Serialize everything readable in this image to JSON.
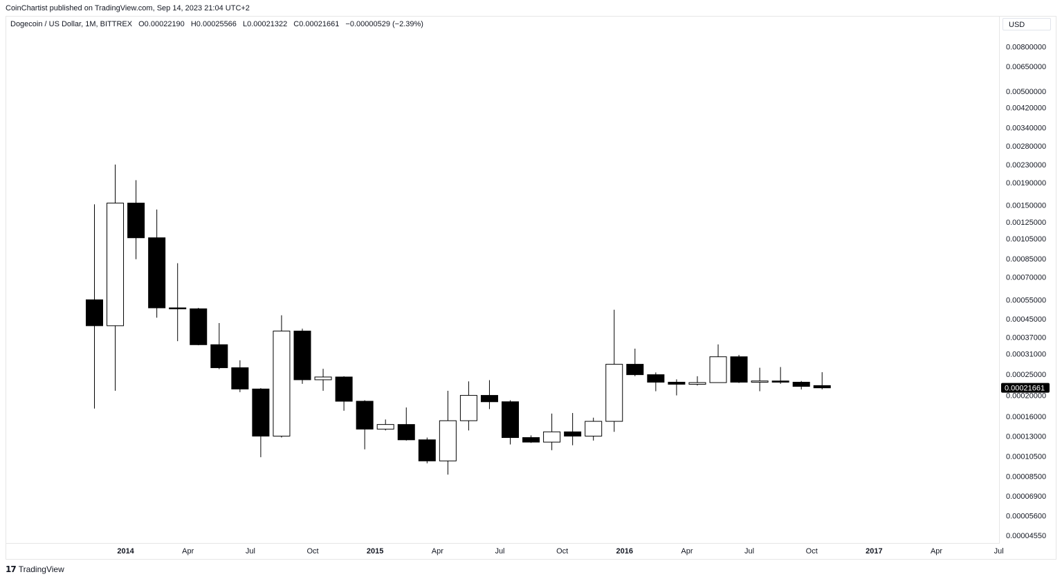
{
  "published": "CoinChartist published on TradingView.com, Sep 14, 2023 21:04 UTC+2",
  "symbol_line": {
    "symbol": "Dogecoin / US Dollar, 1M, BITTREX",
    "open": "O0.00022190",
    "high": "H0.00025566",
    "low": "L0.00021322",
    "close": "C0.00021661",
    "change": "−0.00000529 (−2.39%)"
  },
  "currency": "USD",
  "brand": "TradingView",
  "colors": {
    "up_body": "#ffffff",
    "down_body": "#000000",
    "wick": "#000000",
    "last_price_bg": "#000000"
  },
  "chart_data": {
    "type": "candlestick",
    "scale": "log",
    "ylim": [
      4.35e-05,
      0.0091
    ],
    "y_ticks": [
      "0.00800000",
      "0.00650000",
      "0.00500000",
      "0.00420000",
      "0.00340000",
      "0.00280000",
      "0.00230000",
      "0.00190000",
      "0.00150000",
      "0.00125000",
      "0.00105000",
      "0.00085000",
      "0.00070000",
      "0.00055000",
      "0.00045000",
      "0.00037000",
      "0.00031000",
      "0.00025000",
      "0.00020000",
      "0.00016000",
      "0.00013000",
      "0.00010500",
      "0.00008500",
      "0.00006900",
      "0.00005600",
      "0.00004550"
    ],
    "x_ticks": [
      {
        "label": "2014",
        "month": "2014-01",
        "major": true
      },
      {
        "label": "Apr",
        "month": "2014-04",
        "major": false
      },
      {
        "label": "Jul",
        "month": "2014-07",
        "major": false
      },
      {
        "label": "Oct",
        "month": "2014-10",
        "major": false
      },
      {
        "label": "2015",
        "month": "2015-01",
        "major": true
      },
      {
        "label": "Apr",
        "month": "2015-04",
        "major": false
      },
      {
        "label": "Jul",
        "month": "2015-07",
        "major": false
      },
      {
        "label": "Oct",
        "month": "2015-10",
        "major": false
      },
      {
        "label": "2016",
        "month": "2016-01",
        "major": true
      },
      {
        "label": "Apr",
        "month": "2016-04",
        "major": false
      },
      {
        "label": "Jul",
        "month": "2016-07",
        "major": false
      },
      {
        "label": "Oct",
        "month": "2016-10",
        "major": false
      },
      {
        "label": "2017",
        "month": "2017-01",
        "major": true
      },
      {
        "label": "Apr",
        "month": "2017-04",
        "major": false
      },
      {
        "label": "Jul",
        "month": "2017-07",
        "major": false
      }
    ],
    "last_price": "0.00021661",
    "candles": [
      {
        "month": "2013-12",
        "open": 0.00055,
        "high": 0.00151,
        "low": 0.000174,
        "close": 0.000418
      },
      {
        "month": "2014-01",
        "open": 0.000418,
        "high": 0.0023,
        "low": 0.00021,
        "close": 0.00153
      },
      {
        "month": "2014-02",
        "open": 0.00153,
        "high": 0.00195,
        "low": 0.000845,
        "close": 0.00106
      },
      {
        "month": "2014-03",
        "open": 0.00106,
        "high": 0.00143,
        "low": 0.000455,
        "close": 0.000505
      },
      {
        "month": "2014-04",
        "open": 0.000505,
        "high": 0.00081,
        "low": 0.000355,
        "close": 0.0005
      },
      {
        "month": "2014-05",
        "open": 0.0005,
        "high": 0.000505,
        "low": 0.00034,
        "close": 0.000342
      },
      {
        "month": "2014-06",
        "open": 0.000342,
        "high": 0.00043,
        "low": 0.000264,
        "close": 0.000268
      },
      {
        "month": "2014-07",
        "open": 0.000268,
        "high": 0.00029,
        "low": 0.000207,
        "close": 0.000214
      },
      {
        "month": "2014-08",
        "open": 0.000214,
        "high": 0.000216,
        "low": 0.000104,
        "close": 0.00013
      },
      {
        "month": "2014-09",
        "open": 0.00013,
        "high": 0.000467,
        "low": 0.000128,
        "close": 0.000395
      },
      {
        "month": "2014-10",
        "open": 0.000395,
        "high": 0.000405,
        "low": 0.000226,
        "close": 0.000236
      },
      {
        "month": "2014-11",
        "open": 0.000236,
        "high": 0.000265,
        "low": 0.00021,
        "close": 0.000243
      },
      {
        "month": "2014-12",
        "open": 0.000243,
        "high": 0.000245,
        "low": 0.00017,
        "close": 0.000188
      },
      {
        "month": "2015-01",
        "open": 0.000188,
        "high": 0.00019,
        "low": 0.000113,
        "close": 0.00014
      },
      {
        "month": "2015-02",
        "open": 0.00014,
        "high": 0.000155,
        "low": 0.000138,
        "close": 0.000147
      },
      {
        "month": "2015-03",
        "open": 0.000147,
        "high": 0.000176,
        "low": 0.000124,
        "close": 0.000125
      },
      {
        "month": "2015-04",
        "open": 0.000125,
        "high": 0.000128,
        "low": 9.75e-05,
        "close": 0.0001
      },
      {
        "month": "2015-05",
        "open": 0.0001,
        "high": 0.00021,
        "low": 8.65e-05,
        "close": 0.000153
      },
      {
        "month": "2015-06",
        "open": 0.000153,
        "high": 0.000232,
        "low": 0.000138,
        "close": 0.0002
      },
      {
        "month": "2015-07",
        "open": 0.0002,
        "high": 0.000235,
        "low": 0.000173,
        "close": 0.000187
      },
      {
        "month": "2015-08",
        "open": 0.000187,
        "high": 0.00019,
        "low": 0.000119,
        "close": 0.000128
      },
      {
        "month": "2015-09",
        "open": 0.000128,
        "high": 0.000131,
        "low": 0.000121,
        "close": 0.000122
      },
      {
        "month": "2015-10",
        "open": 0.000122,
        "high": 0.000165,
        "low": 0.000112,
        "close": 0.000136
      },
      {
        "month": "2015-11",
        "open": 0.000136,
        "high": 0.000166,
        "low": 0.000118,
        "close": 0.00013
      },
      {
        "month": "2015-12",
        "open": 0.00013,
        "high": 0.000158,
        "low": 0.000124,
        "close": 0.000152
      },
      {
        "month": "2016-01",
        "open": 0.000152,
        "high": 0.000495,
        "low": 0.000136,
        "close": 0.000278
      },
      {
        "month": "2016-02",
        "open": 0.000278,
        "high": 0.000328,
        "low": 0.000245,
        "close": 0.000249
      },
      {
        "month": "2016-03",
        "open": 0.000249,
        "high": 0.000255,
        "low": 0.000209,
        "close": 0.00023
      },
      {
        "month": "2016-04",
        "open": 0.00023,
        "high": 0.000237,
        "low": 0.0002,
        "close": 0.000225
      },
      {
        "month": "2016-05",
        "open": 0.000225,
        "high": 0.000245,
        "low": 0.000222,
        "close": 0.000229
      },
      {
        "month": "2016-06",
        "open": 0.000229,
        "high": 0.000343,
        "low": 0.000229,
        "close": 0.000301
      },
      {
        "month": "2016-07",
        "open": 0.000301,
        "high": 0.000307,
        "low": 0.000228,
        "close": 0.00023
      },
      {
        "month": "2016-08",
        "open": 0.00023,
        "high": 0.000268,
        "low": 0.000209,
        "close": 0.000233
      },
      {
        "month": "2016-09",
        "open": 0.000233,
        "high": 0.00027,
        "low": 0.000226,
        "close": 0.00023
      },
      {
        "month": "2016-10",
        "open": 0.00023,
        "high": 0.000233,
        "low": 0.000213,
        "close": 0.00022
      },
      {
        "month": "2016-11",
        "open": 0.0002219,
        "high": 0.00025566,
        "low": 0.00021322,
        "close": 0.00021661
      }
    ]
  }
}
